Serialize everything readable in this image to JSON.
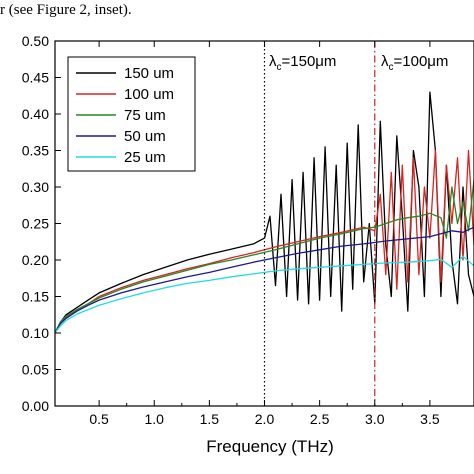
{
  "caption": "r (see Figure 2, inset).",
  "chart_data": {
    "type": "line",
    "title": "",
    "xlabel": "Frequency (THz)",
    "ylabel": "",
    "xlim": [
      0.1,
      3.9
    ],
    "ylim": [
      0.0,
      0.5
    ],
    "xticks": [
      0.5,
      1.0,
      1.5,
      2.0,
      2.5,
      3.0,
      3.5
    ],
    "xtick_labels": [
      "0.5",
      "1.0",
      "1.5",
      "2.0",
      "2.5",
      "3.0",
      "3.5"
    ],
    "yticks": [
      0.0,
      0.05,
      0.1,
      0.15,
      0.2,
      0.25,
      0.3,
      0.35,
      0.4,
      0.45,
      0.5
    ],
    "ytick_labels": [
      "0.00",
      "0.05",
      "0.10",
      "0.15",
      "0.20",
      "0.25",
      "0.30",
      "0.35",
      "0.40",
      "0.45",
      "0.50"
    ],
    "grid": false,
    "legend_position": "top-left",
    "vlines": [
      {
        "x": 2.0,
        "style": "dotted",
        "color": "#000000",
        "label_main": "λ",
        "label_sub": "c",
        "label_rest": "=150μm"
      },
      {
        "x": 3.0,
        "style": "dash-dot",
        "color": "#cc2222",
        "label_main": "λ",
        "label_sub": "c",
        "label_rest": "=100μm"
      }
    ],
    "series": [
      {
        "name": "150 um",
        "color": "#000000",
        "x": [
          0.1,
          0.15,
          0.2,
          0.3,
          0.4,
          0.5,
          0.7,
          0.9,
          1.1,
          1.3,
          1.5,
          1.7,
          1.9,
          2.0,
          2.05,
          2.1,
          2.15,
          2.2,
          2.25,
          2.3,
          2.35,
          2.4,
          2.45,
          2.5,
          2.55,
          2.6,
          2.65,
          2.7,
          2.75,
          2.8,
          2.85,
          2.9,
          2.95,
          3.0,
          3.05,
          3.1,
          3.15,
          3.2,
          3.25,
          3.3,
          3.35,
          3.4,
          3.45,
          3.5,
          3.55,
          3.6,
          3.65,
          3.7,
          3.75,
          3.8,
          3.85,
          3.9
        ],
        "y": [
          0.1,
          0.115,
          0.125,
          0.135,
          0.145,
          0.155,
          0.168,
          0.18,
          0.19,
          0.2,
          0.208,
          0.215,
          0.222,
          0.23,
          0.26,
          0.165,
          0.29,
          0.15,
          0.31,
          0.145,
          0.32,
          0.14,
          0.34,
          0.145,
          0.355,
          0.15,
          0.33,
          0.13,
          0.36,
          0.16,
          0.385,
          0.17,
          0.25,
          0.14,
          0.39,
          0.22,
          0.15,
          0.37,
          0.26,
          0.13,
          0.35,
          0.3,
          0.15,
          0.43,
          0.35,
          0.15,
          0.33,
          0.2,
          0.14,
          0.3,
          0.18,
          0.15
        ]
      },
      {
        "name": "100 um",
        "color": "#dd2222",
        "x": [
          0.1,
          0.15,
          0.2,
          0.3,
          0.4,
          0.5,
          0.7,
          0.9,
          1.1,
          1.3,
          1.5,
          1.7,
          1.9,
          2.1,
          2.3,
          2.5,
          2.7,
          2.9,
          3.0,
          3.05,
          3.1,
          3.15,
          3.2,
          3.25,
          3.3,
          3.35,
          3.4,
          3.45,
          3.5,
          3.55,
          3.6,
          3.65,
          3.7,
          3.75,
          3.8,
          3.85,
          3.9
        ],
        "y": [
          0.1,
          0.115,
          0.122,
          0.132,
          0.14,
          0.15,
          0.162,
          0.172,
          0.18,
          0.188,
          0.195,
          0.203,
          0.21,
          0.218,
          0.225,
          0.232,
          0.238,
          0.245,
          0.24,
          0.29,
          0.18,
          0.32,
          0.16,
          0.33,
          0.17,
          0.34,
          0.18,
          0.3,
          0.23,
          0.35,
          0.17,
          0.33,
          0.25,
          0.34,
          0.2,
          0.35,
          0.22
        ]
      },
      {
        "name": "75 um",
        "color": "#228822",
        "x": [
          0.1,
          0.15,
          0.2,
          0.3,
          0.4,
          0.5,
          0.7,
          0.9,
          1.1,
          1.3,
          1.5,
          1.7,
          1.9,
          2.1,
          2.3,
          2.5,
          2.7,
          2.9,
          3.0,
          3.1,
          3.2,
          3.3,
          3.4,
          3.5,
          3.6,
          3.65,
          3.7,
          3.75,
          3.8,
          3.85,
          3.9
        ],
        "y": [
          0.1,
          0.115,
          0.123,
          0.132,
          0.14,
          0.148,
          0.16,
          0.17,
          0.178,
          0.186,
          0.194,
          0.2,
          0.207,
          0.214,
          0.222,
          0.23,
          0.236,
          0.243,
          0.245,
          0.25,
          0.255,
          0.258,
          0.26,
          0.264,
          0.258,
          0.23,
          0.3,
          0.25,
          0.28,
          0.24,
          0.31
        ]
      },
      {
        "name": "50 um",
        "color": "#1a1a8c",
        "x": [
          0.1,
          0.15,
          0.2,
          0.3,
          0.4,
          0.5,
          0.7,
          0.9,
          1.1,
          1.3,
          1.5,
          1.7,
          1.9,
          2.1,
          2.3,
          2.5,
          2.7,
          2.9,
          3.1,
          3.3,
          3.5,
          3.6,
          3.7,
          3.8,
          3.9
        ],
        "y": [
          0.1,
          0.113,
          0.12,
          0.13,
          0.138,
          0.145,
          0.155,
          0.163,
          0.17,
          0.177,
          0.183,
          0.19,
          0.197,
          0.203,
          0.209,
          0.214,
          0.219,
          0.222,
          0.226,
          0.229,
          0.232,
          0.236,
          0.24,
          0.238,
          0.245
        ]
      },
      {
        "name": "25 um",
        "color": "#22dddd",
        "x": [
          0.1,
          0.15,
          0.2,
          0.3,
          0.4,
          0.5,
          0.7,
          0.9,
          1.1,
          1.3,
          1.5,
          1.7,
          1.9,
          2.1,
          2.3,
          2.5,
          2.7,
          2.9,
          3.1,
          3.3,
          3.5,
          3.6,
          3.7,
          3.8,
          3.9
        ],
        "y": [
          0.1,
          0.11,
          0.117,
          0.126,
          0.132,
          0.138,
          0.147,
          0.155,
          0.162,
          0.168,
          0.172,
          0.177,
          0.181,
          0.185,
          0.188,
          0.19,
          0.192,
          0.194,
          0.196,
          0.197,
          0.199,
          0.201,
          0.19,
          0.205,
          0.192
        ]
      }
    ]
  }
}
